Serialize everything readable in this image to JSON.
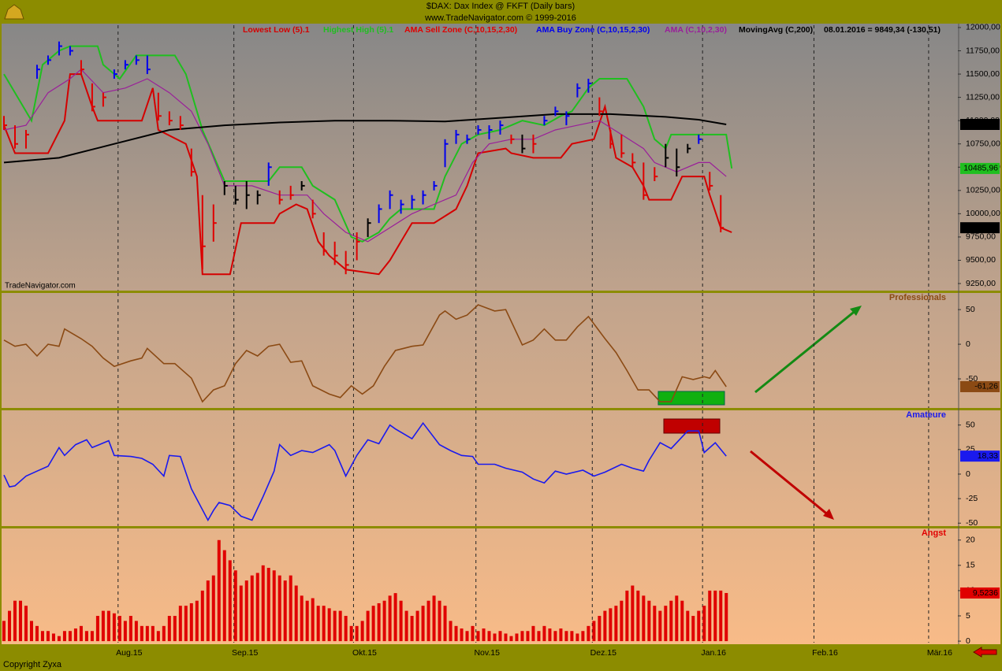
{
  "chart_data": [
    {
      "type": "ohlc",
      "title": "$DAX:  Dax Index @ FKFT  (Daily bars)",
      "subtitle": "www.TradeNavigator.com © 1999-2016",
      "watermark": "TradeNavigator.com",
      "legend_note": "08.01.2016 = 9849,34 (-130,51)",
      "xlim": [
        0,
        173
      ],
      "xticks": [
        {
          "value": 20.7,
          "label": "Aug.15"
        },
        {
          "value": 41.7,
          "label": "Sep.15"
        },
        {
          "value": 63.4,
          "label": "Okt.15"
        },
        {
          "value": 85.6,
          "label": "Nov.15"
        },
        {
          "value": 106.7,
          "label": "Dez.15"
        },
        {
          "value": 126.7,
          "label": "Jan.16"
        },
        {
          "value": 146.9,
          "label": "Feb.16"
        },
        {
          "value": 167.7,
          "label": "Mär.16"
        }
      ],
      "ylim": [
        9174,
        12025
      ],
      "yticks": [
        {
          "value": 9250,
          "label": "9250,00"
        },
        {
          "value": 9500,
          "label": "9500,00"
        },
        {
          "value": 9750,
          "label": "9750,00"
        },
        {
          "value": 10000,
          "label": "10000,00"
        },
        {
          "value": 10250,
          "label": "10250,00"
        },
        {
          "value": 10500,
          "label": "10500,00"
        },
        {
          "value": 10750,
          "label": "10750,00"
        },
        {
          "value": 11000,
          "label": "11000,00"
        },
        {
          "value": 11250,
          "label": "11250,00"
        },
        {
          "value": 11500,
          "label": "11500,00"
        },
        {
          "value": 11750,
          "label": "11750,00"
        },
        {
          "value": 12000,
          "label": "12000,00"
        }
      ],
      "zones": [
        {
          "name": "AMA Sell Zone (C,10,15,2,30)",
          "color": "#e00000"
        },
        {
          "name": "AMA Buy Zone (C,10,15,2,30)",
          "color": "#0000ee"
        }
      ],
      "bars": {
        "x": [
          0,
          2,
          4,
          6,
          8,
          10,
          12,
          14,
          16,
          18,
          20,
          22,
          24,
          26,
          28,
          30,
          32,
          34,
          36,
          38,
          40,
          42,
          44,
          46,
          48,
          50,
          52,
          54,
          56,
          58,
          60,
          62,
          64,
          66,
          68,
          70,
          72,
          74,
          76,
          78,
          80,
          82,
          84,
          86,
          88,
          90,
          92,
          94,
          96,
          98,
          100,
          102,
          104,
          106,
          108,
          110,
          112,
          114,
          116,
          118,
          120,
          122,
          124,
          126,
          128,
          130
        ],
        "high": [
          11050,
          10950,
          10900,
          11600,
          11700,
          11850,
          11800,
          11650,
          11400,
          11300,
          11550,
          11650,
          11700,
          11700,
          11300,
          11100,
          11050,
          10700,
          10200,
          10100,
          10350,
          10300,
          10350,
          10250,
          10550,
          10250,
          10300,
          10350,
          10150,
          9800,
          9700,
          9600,
          9800,
          9950,
          10100,
          10250,
          10150,
          10200,
          10250,
          10350,
          10800,
          10900,
          10850,
          10950,
          10950,
          11000,
          10850,
          10850,
          10850,
          11050,
          11150,
          11100,
          11400,
          11450,
          11250,
          10900,
          10850,
          10650,
          10550,
          10500,
          10750,
          10700,
          10750,
          10850,
          10450,
          10200
        ],
        "low": [
          10900,
          10700,
          10700,
          11450,
          11600,
          11700,
          11700,
          11500,
          11100,
          11150,
          11450,
          11550,
          11600,
          11500,
          11000,
          10950,
          10900,
          10400,
          9400,
          9700,
          10200,
          10100,
          10050,
          10100,
          10300,
          10100,
          10150,
          10250,
          9950,
          9550,
          9450,
          9350,
          9500,
          9750,
          9900,
          10050,
          10000,
          10050,
          10100,
          10250,
          10500,
          10750,
          10750,
          10850,
          10800,
          10850,
          10750,
          10650,
          10650,
          10950,
          11050,
          10950,
          11250,
          11300,
          11050,
          10700,
          10600,
          10500,
          10150,
          10350,
          10500,
          10400,
          10650,
          10750,
          10250,
          9800
        ],
        "close": [
          10950,
          10750,
          10850,
          11550,
          11650,
          11800,
          11750,
          11550,
          11150,
          11250,
          11500,
          11600,
          11650,
          11550,
          11050,
          11000,
          10950,
          10450,
          9650,
          9900,
          10300,
          10150,
          10200,
          10200,
          10500,
          10150,
          10200,
          10300,
          10000,
          9600,
          9550,
          9450,
          9700,
          9900,
          10050,
          10200,
          10100,
          10150,
          10200,
          10300,
          10750,
          10850,
          10800,
          10900,
          10900,
          10950,
          10800,
          10700,
          10750,
          11000,
          11100,
          11050,
          11350,
          11400,
          11100,
          10750,
          10650,
          10550,
          10200,
          10400,
          10600,
          10500,
          10700,
          10800,
          10300,
          9849.34
        ],
        "colors": [
          "#e00000",
          "#e00000",
          "#e00000",
          "#0000ee",
          "#0000ee",
          "#0000ee",
          "#0000ee",
          "#e00000",
          "#e00000",
          "#e00000",
          "#0000ee",
          "#0000ee",
          "#0000ee",
          "#0000ee",
          "#e00000",
          "#e00000",
          "#e00000",
          "#e00000",
          "#e00000",
          "#e00000",
          "#000000",
          "#000000",
          "#000000",
          "#000000",
          "#0000ee",
          "#e00000",
          "#e00000",
          "#000000",
          "#e00000",
          "#e00000",
          "#e00000",
          "#e00000",
          "#e00000",
          "#000000",
          "#0000ee",
          "#0000ee",
          "#0000ee",
          "#0000ee",
          "#0000ee",
          "#0000ee",
          "#0000ee",
          "#0000ee",
          "#0000ee",
          "#0000ee",
          "#0000ee",
          "#0000ee",
          "#e00000",
          "#000000",
          "#e00000",
          "#0000ee",
          "#0000ee",
          "#0000ee",
          "#0000ee",
          "#0000ee",
          "#e00000",
          "#e00000",
          "#e00000",
          "#e00000",
          "#e00000",
          "#e00000",
          "#000000",
          "#000000",
          "#000000",
          "#0000ee",
          "#e00000",
          "#e00000"
        ]
      },
      "series": [
        {
          "name": "Lowest Low (5).1",
          "color": "#d40000",
          "x": [
            0,
            2,
            8,
            11,
            12,
            14,
            16,
            17,
            25,
            27,
            28,
            33,
            35,
            36,
            41,
            43,
            49,
            50,
            53,
            55,
            57,
            59,
            62,
            68,
            70,
            72,
            74,
            78,
            82,
            84,
            86,
            91,
            92,
            96,
            101,
            103,
            107,
            109,
            111,
            114,
            116,
            117,
            121,
            123,
            127,
            128,
            130,
            132
          ],
          "values": [
            10950,
            10650,
            10650,
            11000,
            11500,
            11500,
            11150,
            11000,
            11000,
            11350,
            10900,
            10750,
            10400,
            9350,
            9350,
            9900,
            9900,
            10000,
            10100,
            10050,
            9700,
            9550,
            9400,
            9350,
            9500,
            9700,
            9900,
            9900,
            10050,
            10300,
            10650,
            10700,
            10650,
            10600,
            10600,
            10750,
            10800,
            11150,
            10600,
            10500,
            10300,
            10150,
            10150,
            10400,
            10400,
            10200,
            9850,
            9800
          ]
        },
        {
          "name": "Highest High (5).1",
          "color": "#1fbf1f",
          "x": [
            0,
            5,
            7,
            10,
            12,
            17,
            18,
            21,
            24,
            31,
            33,
            36,
            40,
            48,
            50,
            54,
            56,
            60,
            63,
            65,
            68,
            70,
            72,
            78,
            80,
            83,
            86,
            90,
            94,
            98,
            101,
            103,
            106,
            108,
            113,
            116,
            118,
            120,
            121,
            126,
            131,
            132
          ],
          "values": [
            11500,
            11000,
            11600,
            11750,
            11800,
            11800,
            11600,
            11450,
            11700,
            11700,
            11500,
            10900,
            10350,
            10350,
            10500,
            10500,
            10300,
            10150,
            9750,
            9700,
            9800,
            9950,
            10050,
            10050,
            10400,
            10750,
            10850,
            10900,
            11000,
            10950,
            11050,
            11100,
            11350,
            11450,
            11450,
            11150,
            10800,
            10700,
            10850,
            10850,
            10850,
            10485.96
          ]
        },
        {
          "name": "AMA (C,10,2,30)",
          "color": "#9a1f9a",
          "x": [
            0,
            4,
            8,
            12,
            14,
            18,
            22,
            26,
            30,
            34,
            37,
            40,
            45,
            50,
            55,
            58,
            62,
            66,
            70,
            74,
            78,
            82,
            85,
            88,
            92,
            96,
            100,
            104,
            108,
            112,
            116,
            118,
            122,
            126,
            128,
            131
          ],
          "values": [
            10900,
            10950,
            11300,
            11450,
            11550,
            11300,
            11350,
            11450,
            11300,
            11100,
            10750,
            10300,
            10300,
            10200,
            10200,
            10000,
            9800,
            9700,
            9850,
            10000,
            10100,
            10200,
            10550,
            10750,
            10800,
            10800,
            10900,
            10950,
            11000,
            10850,
            10700,
            10550,
            10450,
            10550,
            10550,
            10400
          ]
        },
        {
          "name": "MovingAvg (C,200)",
          "color": "#000000",
          "x": [
            0,
            10,
            20,
            30,
            40,
            50,
            60,
            70,
            80,
            90,
            100,
            110,
            120,
            126,
            131
          ],
          "values": [
            10550,
            10600,
            10750,
            10900,
            10950,
            10980,
            11000,
            11000,
            10990,
            11030,
            11070,
            11070,
            11040,
            11010,
            10959.05
          ]
        }
      ],
      "last_values": [
        {
          "value": 10959.05,
          "label": "10959,05",
          "color": "#000000"
        },
        {
          "value": 10485.96,
          "label": "10485,96",
          "color": "#1fbf1f"
        },
        {
          "value": 9849.34,
          "label": "9849,34",
          "color": "#000000"
        }
      ]
    },
    {
      "type": "line",
      "title": "Professionals",
      "color": "#8b4a14",
      "ylim": [
        -92,
        74
      ],
      "yticks": [
        50,
        0,
        -50
      ],
      "x": [
        0,
        2,
        4,
        6,
        8,
        10,
        11,
        14,
        16,
        18,
        20,
        23,
        25,
        26,
        29,
        31,
        34,
        36,
        38,
        40,
        42,
        44,
        46,
        48,
        50,
        52,
        54,
        56,
        59,
        61,
        63,
        65,
        67,
        69,
        71,
        74,
        76,
        79,
        80,
        82,
        84,
        86,
        89,
        91,
        94,
        96,
        98,
        100,
        102,
        104,
        106,
        109,
        111,
        113,
        115,
        117,
        119,
        121,
        123,
        125,
        127,
        128,
        129,
        131
      ],
      "values": [
        6,
        -3,
        0,
        -17,
        0,
        -3,
        22,
        8,
        -3,
        -20,
        -32,
        -24,
        -20,
        -6,
        -28,
        -28,
        -49,
        -83,
        -66,
        -60,
        -28,
        -9,
        -17,
        -3,
        0,
        -26,
        -24,
        -60,
        -72,
        -77,
        -60,
        -72,
        -60,
        -32,
        -9,
        -3,
        -1,
        42,
        48,
        36,
        42,
        57,
        48,
        50,
        -1,
        6,
        22,
        6,
        6,
        25,
        40,
        8,
        -12,
        -38,
        -66,
        -66,
        -83,
        -83,
        -47,
        -51,
        -47,
        -49,
        -38,
        -61.26
      ],
      "last_value": {
        "value": -61.26,
        "label": "-61,26"
      }
    },
    {
      "type": "line",
      "title": "Amateure",
      "color": "#1a1aee",
      "ylim": [
        -53,
        65
      ],
      "yticks": [
        50,
        25,
        0,
        -25,
        -50
      ],
      "x": [
        0,
        1,
        2,
        4,
        6,
        8,
        10,
        11,
        13,
        15,
        16,
        19,
        20,
        23,
        25,
        27,
        29,
        30,
        32,
        34,
        37,
        38,
        39,
        41,
        43,
        45,
        47,
        49,
        50,
        52,
        54,
        56,
        59,
        60,
        62,
        64,
        66,
        68,
        70,
        71,
        74,
        76,
        79,
        81,
        83,
        85,
        86,
        89,
        91,
        94,
        96,
        98,
        100,
        102,
        105,
        107,
        109,
        112,
        114,
        116,
        117,
        119,
        121,
        124,
        126,
        127,
        129,
        131
      ],
      "values": [
        -1,
        -13,
        -12,
        -2,
        3,
        8,
        27,
        19,
        30,
        35,
        27,
        34,
        19,
        18,
        16,
        10,
        -2,
        19,
        18,
        -15,
        -47,
        -37,
        -29,
        -32,
        -43,
        -47,
        -23,
        3,
        30,
        19,
        24,
        22,
        30,
        24,
        -2,
        19,
        35,
        31,
        50,
        46,
        36,
        52,
        30,
        24,
        19,
        18,
        10,
        10,
        6,
        2,
        -5,
        -9,
        3,
        0,
        4,
        -2,
        2,
        10,
        6,
        3,
        14,
        32,
        26,
        44,
        44,
        22,
        32,
        18.33
      ],
      "last_value": {
        "value": 18.33,
        "label": "18,33"
      }
    },
    {
      "type": "bar",
      "title": "Angst",
      "color": "#e00000",
      "ylim": [
        -0.3,
        22.3
      ],
      "yticks": [
        20,
        15,
        10,
        5,
        0
      ],
      "values": [
        4,
        6,
        8,
        8,
        7,
        4,
        3,
        2,
        2,
        1.5,
        1,
        2,
        2,
        2.5,
        3,
        2,
        2,
        5,
        6,
        6,
        5.5,
        5,
        4,
        5,
        4,
        3,
        3,
        3,
        2,
        3,
        5,
        5,
        7,
        7,
        7.5,
        8,
        10,
        12,
        13,
        20,
        18,
        16,
        14,
        11,
        12,
        13,
        13.5,
        15,
        14.5,
        14,
        13,
        12,
        13,
        11,
        9,
        8,
        8.5,
        7,
        7,
        6.5,
        6,
        6,
        5,
        3,
        3,
        4,
        6,
        7,
        7.5,
        8,
        9,
        9.5,
        8,
        6,
        5,
        6,
        7,
        8,
        9,
        8,
        7,
        4,
        3,
        2.5,
        2,
        3,
        2,
        2.5,
        2,
        1.5,
        2,
        1.5,
        1,
        1.5,
        2,
        2,
        3,
        2,
        3,
        2.5,
        2,
        2.5,
        2,
        2,
        1.5,
        2,
        3,
        4,
        5,
        6,
        6.5,
        7,
        8,
        10,
        11,
        10,
        9,
        8,
        7,
        6,
        7,
        8,
        9,
        8,
        6,
        5,
        6,
        7,
        10,
        10,
        10,
        9.5236
      ],
      "last_value": {
        "value": 9.5236,
        "label": "9,5236"
      }
    }
  ],
  "footer": "Copyright Zyxa"
}
